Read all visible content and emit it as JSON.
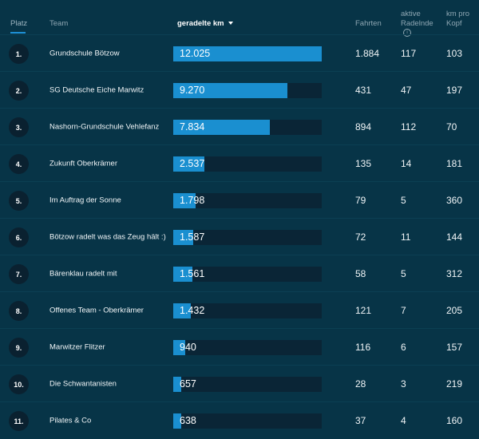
{
  "header": {
    "platz": "Platz",
    "team": "Team",
    "km": "geradelte km",
    "fahrten": "Fahrten",
    "aktive_line1": "aktive",
    "aktive_line2": "Radelnde",
    "km_pro_line1": "km pro",
    "km_pro_line2": "Kopf"
  },
  "colors": {
    "accent": "#1a8fd0",
    "background": "#073447",
    "bar_track": "#0a2536"
  },
  "max_km": 12025,
  "rows": [
    {
      "rank": "1.",
      "team": "Grundschule Bötzow",
      "km": "12.025",
      "km_value": 12025,
      "fahrten": "1.884",
      "aktive": "117",
      "kopf": "103"
    },
    {
      "rank": "2.",
      "team": "SG Deutsche Eiche Marwitz",
      "km": "9.270",
      "km_value": 9270,
      "fahrten": "431",
      "aktive": "47",
      "kopf": "197"
    },
    {
      "rank": "3.",
      "team": "Nashorn-Grundschule Vehlefanz",
      "km": "7.834",
      "km_value": 7834,
      "fahrten": "894",
      "aktive": "112",
      "kopf": "70"
    },
    {
      "rank": "4.",
      "team": "Zukunft Oberkrämer",
      "km": "2.537",
      "km_value": 2537,
      "fahrten": "135",
      "aktive": "14",
      "kopf": "181"
    },
    {
      "rank": "5.",
      "team": "Im Auftrag der Sonne",
      "km": "1.798",
      "km_value": 1798,
      "fahrten": "79",
      "aktive": "5",
      "kopf": "360"
    },
    {
      "rank": "6.",
      "team": "Bötzow radelt was das Zeug hält :)",
      "km": "1.587",
      "km_value": 1587,
      "fahrten": "72",
      "aktive": "11",
      "kopf": "144"
    },
    {
      "rank": "7.",
      "team": "Bärenklau radelt mit",
      "km": "1.561",
      "km_value": 1561,
      "fahrten": "58",
      "aktive": "5",
      "kopf": "312"
    },
    {
      "rank": "8.",
      "team": "Offenes Team - Oberkrämer",
      "km": "1.432",
      "km_value": 1432,
      "fahrten": "121",
      "aktive": "7",
      "kopf": "205"
    },
    {
      "rank": "9.",
      "team": "Marwitzer Flitzer",
      "km": "940",
      "km_value": 940,
      "fahrten": "116",
      "aktive": "6",
      "kopf": "157"
    },
    {
      "rank": "10.",
      "team": "Die Schwantanisten",
      "km": "657",
      "km_value": 657,
      "fahrten": "28",
      "aktive": "3",
      "kopf": "219"
    },
    {
      "rank": "11.",
      "team": "Pilates & Co",
      "km": "638",
      "km_value": 638,
      "fahrten": "37",
      "aktive": "4",
      "kopf": "160"
    }
  ]
}
